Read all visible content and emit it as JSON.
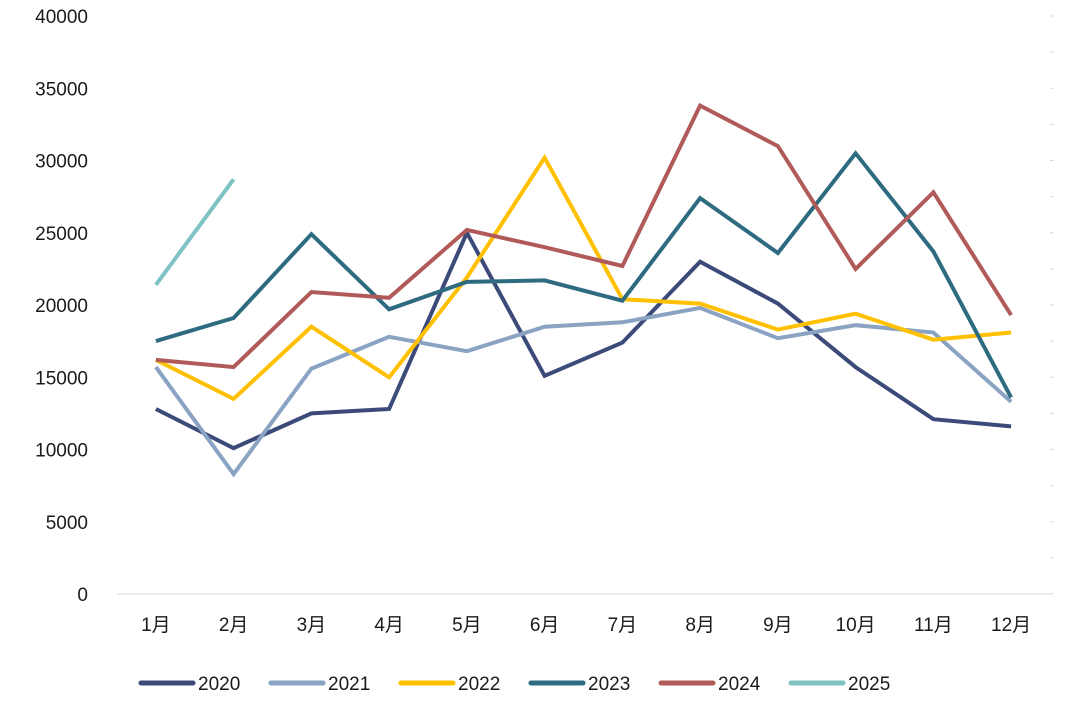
{
  "chart_data": {
    "type": "line",
    "categories": [
      "1月",
      "2月",
      "3月",
      "4月",
      "5月",
      "6月",
      "7月",
      "8月",
      "9月",
      "10月",
      "11月",
      "12月"
    ],
    "ylim": [
      0,
      40000
    ],
    "y_ticks": [
      0,
      5000,
      10000,
      15000,
      20000,
      25000,
      30000,
      35000,
      40000
    ],
    "y_tick_labels": [
      "0",
      "5000",
      "10000",
      "15000",
      "20000",
      "25000",
      "30000",
      "35000",
      "40000"
    ],
    "grid": false,
    "legend_position": "bottom",
    "series": [
      {
        "name": "2020",
        "color": "#3c4a7a",
        "values": [
          12800,
          10100,
          12500,
          12800,
          25000,
          15100,
          17400,
          23000,
          20100,
          15700,
          12100,
          11600
        ]
      },
      {
        "name": "2021",
        "color": "#8aa3c2",
        "values": [
          15700,
          8300,
          15600,
          17800,
          16800,
          18500,
          18800,
          19800,
          17700,
          18600,
          18100,
          13300
        ]
      },
      {
        "name": "2022",
        "color": "#ffc000",
        "values": [
          16200,
          13500,
          18500,
          15000,
          21900,
          30200,
          20400,
          20100,
          18300,
          19400,
          17600,
          18100
        ]
      },
      {
        "name": "2023",
        "color": "#2e6b80",
        "values": [
          17500,
          19100,
          24900,
          19700,
          21600,
          21700,
          20300,
          27400,
          23600,
          30500,
          23700,
          13600
        ]
      },
      {
        "name": "2024",
        "color": "#b05a5a",
        "values": [
          16200,
          15700,
          20900,
          20500,
          25200,
          24000,
          22700,
          33800,
          31000,
          22500,
          27800,
          19300
        ]
      },
      {
        "name": "2025",
        "color": "#7fc3c4",
        "values": [
          21400,
          28700,
          null,
          null,
          null,
          null,
          null,
          null,
          null,
          null,
          null,
          null
        ]
      }
    ]
  }
}
